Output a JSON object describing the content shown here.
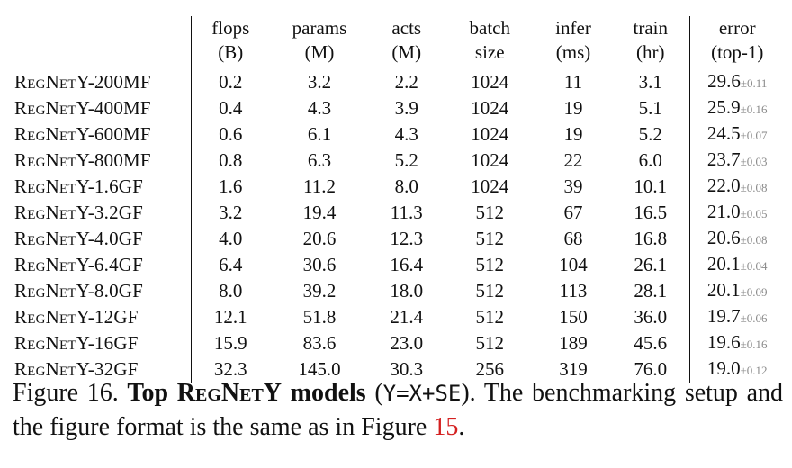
{
  "table": {
    "headers": [
      {
        "l1": "",
        "l2": ""
      },
      {
        "l1": "flops",
        "l2": "(B)"
      },
      {
        "l1": "params",
        "l2": "(M)"
      },
      {
        "l1": "acts",
        "l2": "(M)"
      },
      {
        "l1": "batch",
        "l2": "size"
      },
      {
        "l1": "infer",
        "l2": "(ms)"
      },
      {
        "l1": "train",
        "l2": "(hr)"
      },
      {
        "l1": "error",
        "l2": "(top-1)"
      }
    ],
    "rows": [
      {
        "model": "RegNetY-200MF",
        "flops": "0.2",
        "params": "3.2",
        "acts": "2.2",
        "batch": "1024",
        "infer": "11",
        "train": "3.1",
        "error": "29.6",
        "std": "±0.11"
      },
      {
        "model": "RegNetY-400MF",
        "flops": "0.4",
        "params": "4.3",
        "acts": "3.9",
        "batch": "1024",
        "infer": "19",
        "train": "5.1",
        "error": "25.9",
        "std": "±0.16"
      },
      {
        "model": "RegNetY-600MF",
        "flops": "0.6",
        "params": "6.1",
        "acts": "4.3",
        "batch": "1024",
        "infer": "19",
        "train": "5.2",
        "error": "24.5",
        "std": "±0.07"
      },
      {
        "model": "RegNetY-800MF",
        "flops": "0.8",
        "params": "6.3",
        "acts": "5.2",
        "batch": "1024",
        "infer": "22",
        "train": "6.0",
        "error": "23.7",
        "std": "±0.03"
      },
      {
        "model": "RegNetY-1.6GF",
        "flops": "1.6",
        "params": "11.2",
        "acts": "8.0",
        "batch": "1024",
        "infer": "39",
        "train": "10.1",
        "error": "22.0",
        "std": "±0.08"
      },
      {
        "model": "RegNetY-3.2GF",
        "flops": "3.2",
        "params": "19.4",
        "acts": "11.3",
        "batch": "512",
        "infer": "67",
        "train": "16.5",
        "error": "21.0",
        "std": "±0.05"
      },
      {
        "model": "RegNetY-4.0GF",
        "flops": "4.0",
        "params": "20.6",
        "acts": "12.3",
        "batch": "512",
        "infer": "68",
        "train": "16.8",
        "error": "20.6",
        "std": "±0.08"
      },
      {
        "model": "RegNetY-6.4GF",
        "flops": "6.4",
        "params": "30.6",
        "acts": "16.4",
        "batch": "512",
        "infer": "104",
        "train": "26.1",
        "error": "20.1",
        "std": "±0.04"
      },
      {
        "model": "RegNetY-8.0GF",
        "flops": "8.0",
        "params": "39.2",
        "acts": "18.0",
        "batch": "512",
        "infer": "113",
        "train": "28.1",
        "error": "20.1",
        "std": "±0.09"
      },
      {
        "model": "RegNetY-12GF",
        "flops": "12.1",
        "params": "51.8",
        "acts": "21.4",
        "batch": "512",
        "infer": "150",
        "train": "36.0",
        "error": "19.7",
        "std": "±0.06"
      },
      {
        "model": "RegNetY-16GF",
        "flops": "15.9",
        "params": "83.6",
        "acts": "23.0",
        "batch": "512",
        "infer": "189",
        "train": "45.6",
        "error": "19.6",
        "std": "±0.16"
      },
      {
        "model": "RegNetY-32GF",
        "flops": "32.3",
        "params": "145.0",
        "acts": "30.3",
        "batch": "256",
        "infer": "319",
        "train": "76.0",
        "error": "19.0",
        "std": "±0.12"
      }
    ]
  },
  "caption": {
    "label": "Figure 16.",
    "bold_a": "Top ",
    "bold_sc": "RegNetY",
    "bold_b": " models",
    "open": " (",
    "code": "Y=X+SE",
    "rest": "). The benchmarking setup and the figure format is the same as in Figure ",
    "ref": "15",
    "end": "."
  }
}
